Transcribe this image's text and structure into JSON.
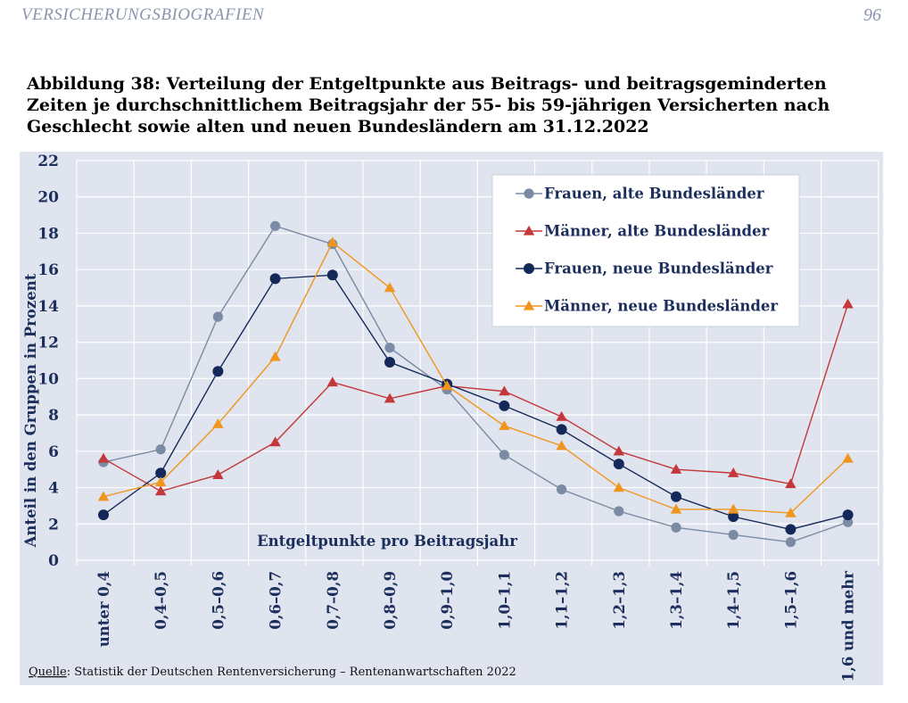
{
  "header": {
    "left": "VERSICHERUNGSBIOGRAFIEN",
    "page_number": "96"
  },
  "caption": "Abbildung 38: Verteilung der Entgeltpunkte aus Beitrags- und beitragsgeminderten Zeiten je durchschnittlichem Beitragsjahr der 55- bis 59-jährigen Versicherten nach Geschlecht sowie alten und neuen Bundesländern am 31.12.2022",
  "source": {
    "label": "Quelle",
    "text": ": Statistik der Deutschen Rentenversicherung – Rentenanwartschaften 2022"
  },
  "colors": {
    "background": "#dfe4ee",
    "grid": "#ffffff",
    "axis_text": "#1b2e5c"
  },
  "chart_data": {
    "type": "line",
    "title": "",
    "xlabel": "Entgeltpunkte pro Beitragsjahr",
    "ylabel": "Anteil in den Gruppen in Prozent",
    "ylim": [
      0,
      22
    ],
    "yticks": [
      0,
      2,
      4,
      6,
      8,
      10,
      12,
      14,
      16,
      18,
      20,
      22
    ],
    "legend_position": "top-right",
    "categories": [
      "unter 0,4",
      "0,4–0,5",
      "0,5–0,6",
      "0,6–0,7",
      "0,7–0,8",
      "0,8–0,9",
      "0,9–1,0",
      "1,0–1,1",
      "1,1–1,2",
      "1,2–1,3",
      "1,3–1,4",
      "1,4–1,5",
      "1,5–1,6",
      "1,6 und mehr"
    ],
    "series": [
      {
        "name": "Frauen, alte Bundesländer",
        "color": "#7a8ba3",
        "marker": "circle-small",
        "values": [
          5.4,
          6.1,
          13.4,
          18.4,
          17.4,
          11.7,
          9.4,
          5.8,
          3.9,
          2.7,
          1.8,
          1.4,
          1.0,
          2.1
        ]
      },
      {
        "name": "Männer, alte Bundesländer",
        "color": "#c4383b",
        "marker": "triangle",
        "values": [
          5.6,
          3.8,
          4.7,
          6.5,
          9.8,
          8.9,
          9.6,
          9.3,
          7.9,
          6.0,
          5.0,
          4.8,
          4.2,
          14.1
        ]
      },
      {
        "name": "Frauen, neue Bundesländer",
        "color": "#14295a",
        "marker": "circle",
        "values": [
          2.5,
          4.8,
          10.4,
          15.5,
          15.7,
          10.9,
          9.7,
          8.5,
          7.2,
          5.3,
          3.5,
          2.4,
          1.7,
          2.5
        ]
      },
      {
        "name": "Männer, neue Bundesländer",
        "color": "#f0961e",
        "marker": "triangle",
        "values": [
          3.5,
          4.3,
          7.5,
          11.2,
          17.5,
          15.0,
          9.6,
          7.4,
          6.3,
          4.0,
          2.8,
          2.8,
          2.6,
          5.6
        ]
      }
    ]
  }
}
